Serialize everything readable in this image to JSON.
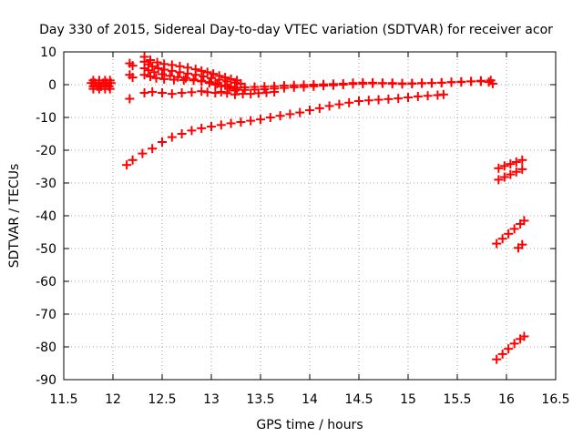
{
  "chart_data": {
    "type": "scatter",
    "title": "Day 330 of 2015, Sidereal Day-to-day VTEC variation (SDTVAR) for receiver acor",
    "xlabel": "GPS time / hours",
    "ylabel": "SDTVAR / TECUs",
    "xlim": [
      11.5,
      16.5
    ],
    "ylim": [
      -90,
      10
    ],
    "xticks": [
      "11.5",
      "12",
      "12.5",
      "13",
      "13.5",
      "14",
      "14.5",
      "15",
      "15.5",
      "16",
      "16.5"
    ],
    "yticks": [
      "10",
      "0",
      "-10",
      "-20",
      "-30",
      "-40",
      "-50",
      "-60",
      "-70",
      "-80",
      "-90"
    ],
    "grid": true,
    "marker": "+",
    "color": "#ff0000",
    "series": [
      {
        "points": [
          [
            11.78,
            0.5
          ],
          [
            11.82,
            0.5
          ],
          [
            11.86,
            0.5
          ],
          [
            11.9,
            0.5
          ],
          [
            11.94,
            0.5
          ],
          [
            11.98,
            0.5
          ],
          [
            11.8,
            -0.5
          ],
          [
            11.84,
            -0.5
          ],
          [
            11.88,
            -0.5
          ],
          [
            11.92,
            -0.5
          ],
          [
            11.96,
            -0.5
          ],
          [
            11.8,
            1.3
          ],
          [
            11.86,
            1.3
          ],
          [
            11.92,
            1.3
          ],
          [
            11.97,
            1.3
          ],
          [
            11.8,
            -1.3
          ],
          [
            11.86,
            -1.3
          ],
          [
            11.92,
            -1.3
          ],
          [
            11.97,
            -1.3
          ]
        ]
      },
      {
        "points": [
          [
            12.17,
            6.5
          ],
          [
            12.2,
            5.8
          ],
          [
            12.17,
            3.0
          ],
          [
            12.2,
            2.2
          ],
          [
            12.17,
            -4.3
          ]
        ]
      },
      {
        "points": [
          [
            12.32,
            8.5
          ],
          [
            12.38,
            7.5
          ],
          [
            12.45,
            6.8
          ],
          [
            12.52,
            6.3
          ],
          [
            12.6,
            6.0
          ],
          [
            12.68,
            5.6
          ],
          [
            12.76,
            5.2
          ],
          [
            12.84,
            4.7
          ],
          [
            12.9,
            4.2
          ],
          [
            12.96,
            3.8
          ],
          [
            13.02,
            3.3
          ],
          [
            13.08,
            2.7
          ],
          [
            13.14,
            2.2
          ],
          [
            13.2,
            1.7
          ],
          [
            13.26,
            1.3
          ]
        ]
      },
      {
        "points": [
          [
            12.32,
            7.0
          ],
          [
            12.36,
            6.2
          ],
          [
            12.4,
            5.6
          ],
          [
            12.46,
            5.0
          ],
          [
            12.52,
            4.6
          ],
          [
            12.6,
            4.2
          ],
          [
            12.68,
            3.8
          ],
          [
            12.76,
            3.4
          ],
          [
            12.84,
            3.0
          ],
          [
            12.92,
            2.5
          ],
          [
            13.0,
            2.0
          ],
          [
            13.08,
            1.5
          ],
          [
            13.16,
            1.0
          ],
          [
            13.24,
            0.6
          ],
          [
            13.3,
            0.3
          ]
        ]
      },
      {
        "points": [
          [
            12.32,
            5.0
          ],
          [
            12.36,
            4.4
          ],
          [
            12.42,
            3.8
          ],
          [
            12.5,
            3.2
          ],
          [
            12.58,
            2.7
          ],
          [
            12.66,
            2.3
          ],
          [
            12.74,
            2.0
          ],
          [
            12.82,
            1.6
          ],
          [
            12.9,
            1.2
          ],
          [
            12.98,
            0.8
          ],
          [
            13.06,
            0.3
          ],
          [
            13.14,
            -0.2
          ],
          [
            13.2,
            -0.6
          ],
          [
            13.26,
            -0.9
          ]
        ]
      },
      {
        "points": [
          [
            12.32,
            3.0
          ],
          [
            12.38,
            2.5
          ],
          [
            12.44,
            2.0
          ],
          [
            12.52,
            1.7
          ],
          [
            12.62,
            1.5
          ],
          [
            12.72,
            1.4
          ],
          [
            12.82,
            1.3
          ],
          [
            12.9,
            1.0
          ],
          [
            12.98,
            0.5
          ],
          [
            13.04,
            0.0
          ],
          [
            13.1,
            -0.5
          ],
          [
            13.18,
            -1.0
          ],
          [
            13.26,
            -1.5
          ]
        ]
      },
      {
        "points": [
          [
            12.32,
            -2.5
          ],
          [
            12.4,
            -2.2
          ],
          [
            12.5,
            -2.5
          ],
          [
            12.6,
            -2.8
          ],
          [
            12.7,
            -2.5
          ],
          [
            12.8,
            -2.3
          ],
          [
            12.9,
            -2.0
          ],
          [
            12.96,
            -2.3
          ],
          [
            13.04,
            -2.5
          ],
          [
            13.1,
            -2.2
          ],
          [
            13.16,
            -2.6
          ],
          [
            13.24,
            -3.0
          ],
          [
            13.32,
            -2.8
          ],
          [
            13.4,
            -2.8
          ],
          [
            13.48,
            -2.6
          ],
          [
            13.56,
            -2.4
          ],
          [
            13.64,
            -2.2
          ]
        ]
      },
      {
        "points": [
          [
            13.24,
            -1.8
          ],
          [
            13.34,
            -1.6
          ],
          [
            13.44,
            -1.5
          ],
          [
            13.54,
            -1.4
          ],
          [
            13.64,
            -1.2
          ],
          [
            13.74,
            -1.0
          ],
          [
            13.84,
            -0.8
          ],
          [
            13.94,
            -0.7
          ],
          [
            14.04,
            -0.5
          ],
          [
            14.14,
            -0.3
          ],
          [
            14.24,
            -0.2
          ],
          [
            14.34,
            0.0
          ],
          [
            14.44,
            0.2
          ],
          [
            14.54,
            0.3
          ],
          [
            14.64,
            0.4
          ],
          [
            14.74,
            0.4
          ],
          [
            14.84,
            0.3
          ],
          [
            14.94,
            0.2
          ],
          [
            15.04,
            0.3
          ],
          [
            15.14,
            0.4
          ],
          [
            15.24,
            0.5
          ],
          [
            15.34,
            0.6
          ],
          [
            15.44,
            0.7
          ],
          [
            15.54,
            0.8
          ],
          [
            15.64,
            1.0
          ],
          [
            15.74,
            1.2
          ],
          [
            15.84,
            1.3
          ]
        ]
      },
      {
        "points": [
          [
            13.34,
            -0.8
          ],
          [
            13.44,
            -0.7
          ],
          [
            13.54,
            -0.6
          ],
          [
            13.64,
            -0.5
          ],
          [
            13.74,
            -0.3
          ],
          [
            13.84,
            -0.2
          ],
          [
            13.94,
            -0.1
          ],
          [
            14.04,
            0.0
          ],
          [
            14.14,
            0.1
          ],
          [
            14.24,
            0.2
          ],
          [
            14.34,
            0.3
          ],
          [
            14.44,
            0.5
          ],
          [
            14.54,
            0.6
          ],
          [
            14.64,
            0.6
          ],
          [
            14.74,
            0.5
          ],
          [
            14.84,
            0.5
          ],
          [
            14.94,
            0.4
          ],
          [
            15.04,
            0.4
          ],
          [
            15.14,
            0.5
          ],
          [
            15.24,
            0.5
          ],
          [
            15.34,
            0.6
          ],
          [
            15.44,
            0.8
          ],
          [
            15.54,
            0.9
          ],
          [
            15.64,
            1.0
          ],
          [
            15.74,
            1.0
          ],
          [
            15.82,
            0.8
          ],
          [
            15.86,
            0.3
          ]
        ]
      },
      {
        "points": [
          [
            12.14,
            -24.5
          ],
          [
            12.2,
            -23.0
          ],
          [
            12.3,
            -21.0
          ],
          [
            12.4,
            -19.5
          ],
          [
            12.5,
            -17.5
          ],
          [
            12.6,
            -16.0
          ],
          [
            12.7,
            -15.0
          ],
          [
            12.8,
            -14.0
          ],
          [
            12.9,
            -13.3
          ],
          [
            13.0,
            -12.8
          ],
          [
            13.1,
            -12.3
          ],
          [
            13.2,
            -11.8
          ],
          [
            13.3,
            -11.4
          ],
          [
            13.4,
            -11.0
          ],
          [
            13.5,
            -10.6
          ],
          [
            13.6,
            -10.0
          ],
          [
            13.7,
            -9.5
          ],
          [
            13.8,
            -9.0
          ],
          [
            13.9,
            -8.5
          ],
          [
            14.0,
            -7.8
          ],
          [
            14.1,
            -7.2
          ],
          [
            14.2,
            -6.5
          ],
          [
            14.3,
            -6.0
          ],
          [
            14.4,
            -5.5
          ],
          [
            14.5,
            -5.0
          ],
          [
            14.6,
            -4.8
          ],
          [
            14.7,
            -4.6
          ],
          [
            14.8,
            -4.4
          ],
          [
            14.9,
            -4.2
          ],
          [
            15.0,
            -3.9
          ],
          [
            15.1,
            -3.6
          ],
          [
            15.2,
            -3.4
          ],
          [
            15.3,
            -3.2
          ],
          [
            15.36,
            -3.0
          ]
        ]
      },
      {
        "points": [
          [
            15.92,
            -25.5
          ],
          [
            15.98,
            -24.8
          ],
          [
            16.04,
            -24.2
          ],
          [
            16.1,
            -23.6
          ],
          [
            16.16,
            -23.0
          ]
        ]
      },
      {
        "points": [
          [
            15.92,
            -29.0
          ],
          [
            15.98,
            -28.2
          ],
          [
            16.04,
            -27.4
          ],
          [
            16.1,
            -26.6
          ],
          [
            16.16,
            -25.8
          ]
        ]
      },
      {
        "points": [
          [
            15.9,
            -48.5
          ],
          [
            15.96,
            -47.0
          ],
          [
            16.02,
            -45.5
          ],
          [
            16.08,
            -44.0
          ],
          [
            16.14,
            -42.5
          ],
          [
            16.18,
            -41.5
          ]
        ]
      },
      {
        "points": [
          [
            16.12,
            -49.8
          ],
          [
            16.16,
            -48.8
          ]
        ]
      },
      {
        "points": [
          [
            15.9,
            -83.8
          ],
          [
            15.96,
            -82.2
          ],
          [
            16.02,
            -80.6
          ],
          [
            16.08,
            -79.0
          ],
          [
            16.14,
            -77.6
          ],
          [
            16.18,
            -76.8
          ]
        ]
      }
    ]
  }
}
